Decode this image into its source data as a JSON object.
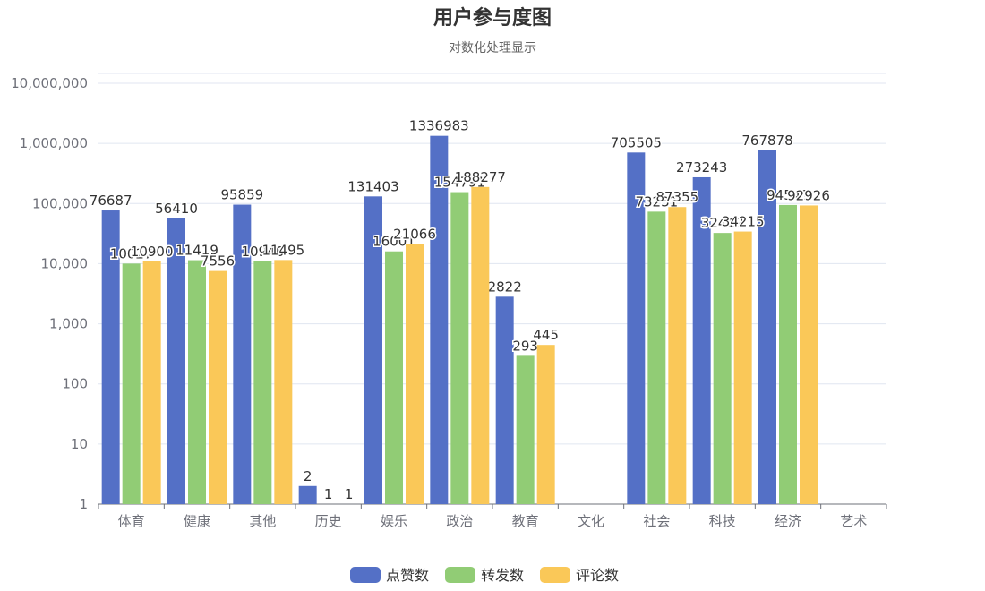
{
  "chart_data": {
    "type": "bar",
    "title": "用户参与度图",
    "subtitle": "对数化处理显示",
    "y_scale": "log",
    "ylim": [
      1,
      10000000
    ],
    "y_ticks": [
      "1",
      "10",
      "100",
      "1,000",
      "10,000",
      "100,000",
      "1,000,000",
      "10,000,000"
    ],
    "y_tick_values": [
      1,
      10,
      100,
      1000,
      10000,
      100000,
      1000000,
      10000000
    ],
    "grid": true,
    "legend_position": "bottom-center",
    "categories": [
      "体育",
      "健康",
      "其他",
      "历史",
      "娱乐",
      "政治",
      "教育",
      "文化",
      "社会",
      "科技",
      "经济",
      "艺术"
    ],
    "series": [
      {
        "name": "点赞数",
        "color": "#5470c6",
        "values": [
          76687,
          56410,
          95859,
          2,
          131403,
          1336983,
          2822,
          null,
          705505,
          273243,
          767878,
          null
        ]
      },
      {
        "name": "转发数",
        "color": "#91cc75",
        "values": [
          10027,
          11419,
          10946,
          1,
          16001,
          154791,
          293,
          null,
          73231,
          32419,
          94541,
          null
        ]
      },
      {
        "name": "评论数",
        "color": "#fac858",
        "values": [
          10900,
          7556,
          11495,
          1,
          21066,
          188277,
          445,
          null,
          87355,
          34215,
          92926,
          null
        ]
      }
    ]
  }
}
